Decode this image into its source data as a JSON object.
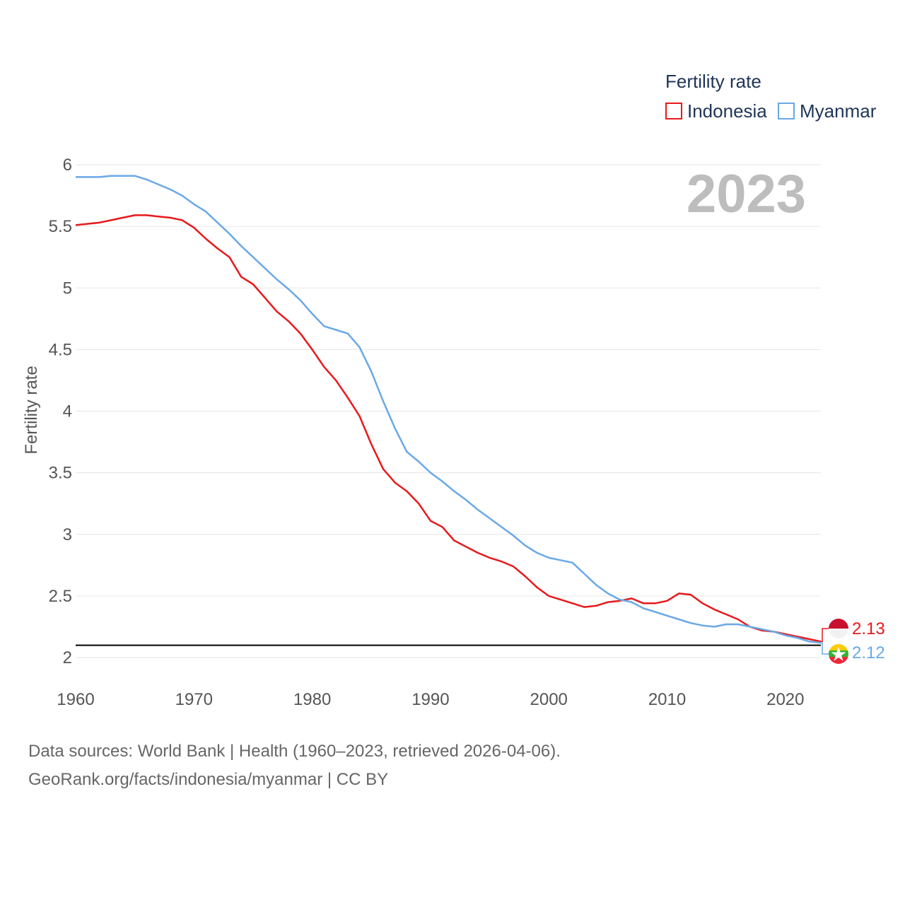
{
  "chart_data": {
    "type": "line",
    "ylabel": "Fertility rate",
    "legend_title": "Fertility rate",
    "legend_position": "top-right",
    "year_label": "2023",
    "ylim": [
      2,
      6
    ],
    "xlim": [
      1960,
      2023
    ],
    "yticks": [
      "2",
      "2.5",
      "3",
      "3.5",
      "4",
      "4.5",
      "5",
      "5.5",
      "6"
    ],
    "xticks": [
      "1960",
      "1970",
      "1980",
      "1990",
      "2000",
      "2010",
      "2020"
    ],
    "reference_line": 2.1,
    "x": [
      1960,
      1961,
      1962,
      1963,
      1964,
      1965,
      1966,
      1967,
      1968,
      1969,
      1970,
      1971,
      1972,
      1973,
      1974,
      1975,
      1976,
      1977,
      1978,
      1979,
      1980,
      1981,
      1982,
      1983,
      1984,
      1985,
      1986,
      1987,
      1988,
      1989,
      1990,
      1991,
      1992,
      1993,
      1994,
      1995,
      1996,
      1997,
      1998,
      1999,
      2000,
      2001,
      2002,
      2003,
      2004,
      2005,
      2006,
      2007,
      2008,
      2009,
      2010,
      2011,
      2012,
      2013,
      2014,
      2015,
      2016,
      2017,
      2018,
      2019,
      2020,
      2021,
      2022,
      2023
    ],
    "series": [
      {
        "name": "Indonesia",
        "color": "#e8191b",
        "end_label": "2.13",
        "values": [
          5.51,
          5.52,
          5.53,
          5.55,
          5.57,
          5.59,
          5.59,
          5.58,
          5.57,
          5.55,
          5.49,
          5.4,
          5.32,
          5.25,
          5.09,
          5.03,
          4.92,
          4.81,
          4.73,
          4.63,
          4.5,
          4.36,
          4.25,
          4.11,
          3.96,
          3.73,
          3.53,
          3.42,
          3.35,
          3.25,
          3.11,
          3.06,
          2.95,
          2.9,
          2.85,
          2.81,
          2.78,
          2.74,
          2.66,
          2.57,
          2.5,
          2.47,
          2.44,
          2.41,
          2.42,
          2.45,
          2.46,
          2.48,
          2.44,
          2.44,
          2.46,
          2.52,
          2.51,
          2.44,
          2.39,
          2.35,
          2.31,
          2.25,
          2.22,
          2.21,
          2.19,
          2.17,
          2.15,
          2.13
        ]
      },
      {
        "name": "Myanmar",
        "color": "#6aa8e6",
        "end_label": "2.12",
        "values": [
          5.9,
          5.9,
          5.9,
          5.91,
          5.91,
          5.91,
          5.88,
          5.84,
          5.8,
          5.75,
          5.68,
          5.62,
          5.53,
          5.44,
          5.34,
          5.25,
          5.16,
          5.07,
          4.99,
          4.9,
          4.79,
          4.69,
          4.66,
          4.63,
          4.52,
          4.32,
          4.08,
          3.86,
          3.67,
          3.59,
          3.5,
          3.43,
          3.35,
          3.28,
          3.2,
          3.13,
          3.06,
          2.99,
          2.91,
          2.85,
          2.81,
          2.79,
          2.77,
          2.68,
          2.59,
          2.52,
          2.47,
          2.45,
          2.4,
          2.37,
          2.34,
          2.31,
          2.28,
          2.26,
          2.25,
          2.27,
          2.27,
          2.25,
          2.23,
          2.21,
          2.18,
          2.16,
          2.13,
          2.12
        ]
      }
    ]
  },
  "source": {
    "line1": "Data sources: World Bank | Health (1960–2023, retrieved 2026-04-06).",
    "line2": "GeoRank.org/facts/indonesia/myanmar | CC BY"
  }
}
